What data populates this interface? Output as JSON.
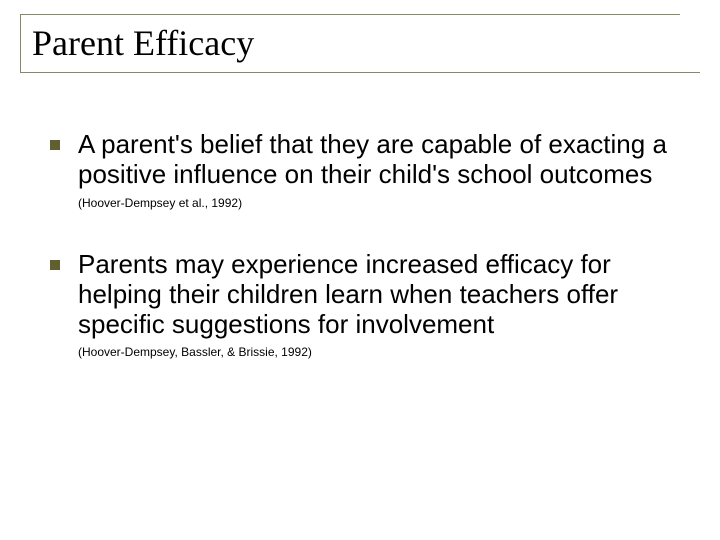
{
  "slide": {
    "title": "Parent Efficacy",
    "bullets": [
      {
        "text": "A parent's belief that they are capable of exacting a positive influence on their child's school outcomes",
        "citation": "(Hoover-Dempsey et al., 1992)"
      },
      {
        "text": "Parents may experience increased efficacy for helping their children learn when teachers offer specific suggestions for involvement",
        "citation": "(Hoover-Dempsey, Bassler, & Brissie, 1992)"
      }
    ],
    "colors": {
      "rule": "#888866",
      "bullet": "#5f5f2f",
      "text": "#000000",
      "background": "#ffffff"
    },
    "typography": {
      "title_font": "Times New Roman",
      "title_size_pt": 36,
      "body_font": "Arial",
      "body_size_pt": 26,
      "citation_size_pt": 12
    }
  }
}
